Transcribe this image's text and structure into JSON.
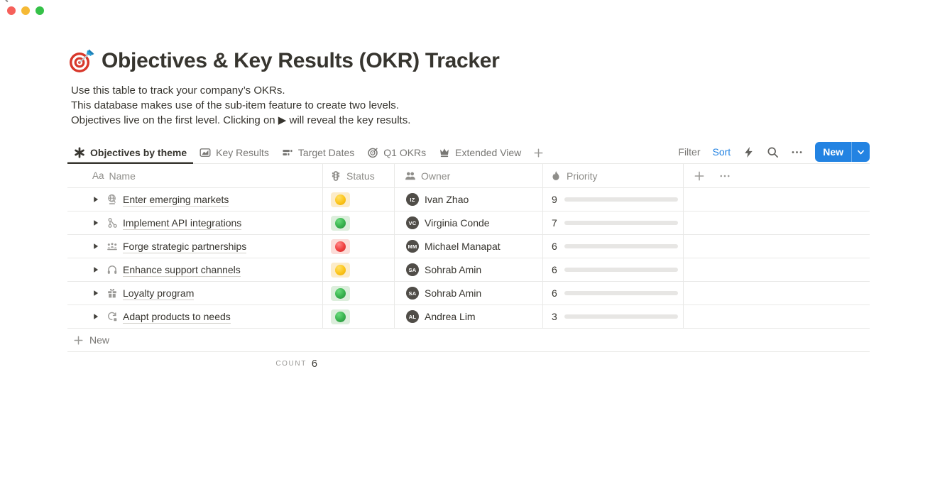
{
  "window": {
    "controls": [
      {
        "name": "close-button",
        "color": "#f6605a"
      },
      {
        "name": "minimize-button",
        "color": "#f5b935"
      },
      {
        "name": "zoom-button",
        "color": "#35c148"
      }
    ]
  },
  "header": {
    "emoji_icon": "dartboard-emoji",
    "title": "Objectives & Key Results (OKR) Tracker",
    "description": [
      "Use this table to track your company’s OKRs.",
      "This database makes use of the sub-item feature to create two levels.",
      "Objectives live on the first level. Clicking on ▶ will reveal the key results."
    ]
  },
  "views": {
    "tabs": [
      {
        "label": "Objectives by theme",
        "icon": "asterisk-icon",
        "active": true
      },
      {
        "label": "Key Results",
        "icon": "chart-icon",
        "active": false
      },
      {
        "label": "Target Dates",
        "icon": "timeline-icon",
        "active": false
      },
      {
        "label": "Q1 OKRs",
        "icon": "target-icon",
        "active": false
      },
      {
        "label": "Extended View",
        "icon": "crown-icon",
        "active": false
      }
    ],
    "add_view_icon": "plus-icon"
  },
  "toolbar": {
    "filter_label": "Filter",
    "sort_label": "Sort",
    "icons": [
      "bolt-icon",
      "search-icon",
      "ellipsis-icon"
    ],
    "new_button_label": "New",
    "new_button_dropdown_icon": "chevron-down-icon"
  },
  "table": {
    "columns": [
      {
        "label": "Name",
        "icon": "text-icon",
        "icon_text": "Aa"
      },
      {
        "label": "Status",
        "icon": "traffic-light-icon",
        "icon_text": ""
      },
      {
        "label": "Owner",
        "icon": "people-icon",
        "icon_text": ""
      },
      {
        "label": "Priority",
        "icon": "flame-icon",
        "icon_text": ""
      }
    ],
    "add_column_icon": "plus-icon",
    "column_options_icon": "ellipsis-icon",
    "rows": [
      {
        "name": "Enter emerging markets",
        "icon": "globe-icon",
        "status": "yellow",
        "owner": "Ivan Zhao",
        "priority": 9
      },
      {
        "name": "Implement API integrations",
        "icon": "integration-icon",
        "status": "green",
        "owner": "Virginia Conde",
        "priority": 7
      },
      {
        "name": "Forge strategic partnerships",
        "icon": "partnership-icon",
        "status": "red",
        "owner": "Michael Manapat",
        "priority": 6
      },
      {
        "name": "Enhance support channels",
        "icon": "headphones-icon",
        "status": "yellow",
        "owner": "Sohrab Amin",
        "priority": 6
      },
      {
        "name": "Loyalty program",
        "icon": "gift-icon",
        "status": "green",
        "owner": "Sohrab Amin",
        "priority": 6
      },
      {
        "name": "Adapt products to needs",
        "icon": "sync-icon",
        "status": "green",
        "owner": "Andrea Lim",
        "priority": 3
      }
    ],
    "priority_max": 10,
    "new_row_label": "New",
    "footer": {
      "count_label": "COUNT",
      "count_value": "6"
    }
  },
  "colors": {
    "accent_blue": "#2383e2",
    "priority_bar": "#4a8a66",
    "status_pills": {
      "yellow": {
        "bg": "#fcecc9",
        "dot_outer": "#e8a800",
        "dot_mid": "#fcc419",
        "dot_hi": "#ffe066"
      },
      "green": {
        "bg": "#dceedc",
        "dot_outer": "#2b8a3e",
        "dot_mid": "#37b24d",
        "dot_hi": "#69db7c"
      },
      "red": {
        "bg": "#fcdcd8",
        "dot_outer": "#c92a2a",
        "dot_mid": "#f03e3e",
        "dot_hi": "#ff8787"
      }
    }
  }
}
